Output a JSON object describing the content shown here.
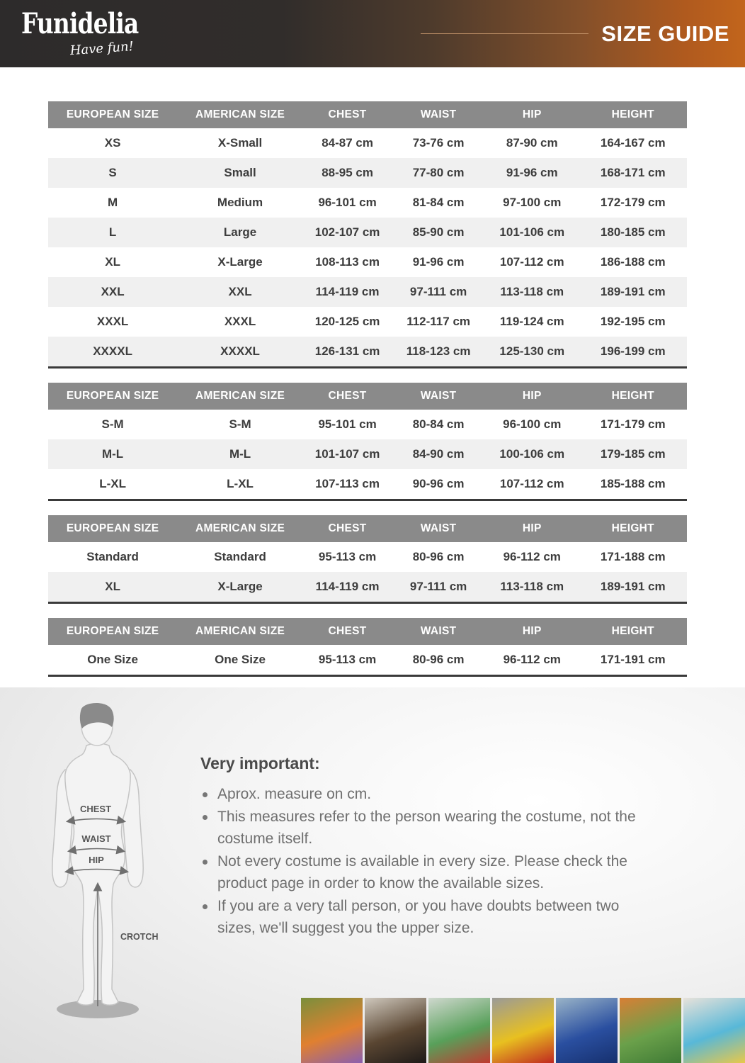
{
  "header": {
    "logo_text": "Funidelia",
    "logo_tagline": "Have fun!",
    "title": "SIZE GUIDE"
  },
  "colors": {
    "banner_dark": "#2d2b2b",
    "banner_orange": "#c2651c",
    "banner_rule": "#c9996e",
    "table_header_bg": "#8a8a8a",
    "row_alt_bg": "#f0f0f0",
    "table_border": "#3a3a3a"
  },
  "tables": [
    {
      "columns": [
        "EUROPEAN SIZE",
        "AMERICAN SIZE",
        "CHEST",
        "WAIST",
        "HIP",
        "HEIGHT"
      ],
      "rows": [
        [
          "XS",
          "X-Small",
          "84-87 cm",
          "73-76 cm",
          "87-90 cm",
          "164-167 cm"
        ],
        [
          "S",
          "Small",
          "88-95 cm",
          "77-80 cm",
          "91-96 cm",
          "168-171 cm"
        ],
        [
          "M",
          "Medium",
          "96-101 cm",
          "81-84 cm",
          "97-100 cm",
          "172-179 cm"
        ],
        [
          "L",
          "Large",
          "102-107 cm",
          "85-90 cm",
          "101-106 cm",
          "180-185 cm"
        ],
        [
          "XL",
          "X-Large",
          "108-113 cm",
          "91-96 cm",
          "107-112 cm",
          "186-188 cm"
        ],
        [
          "XXL",
          "XXL",
          "114-119 cm",
          "97-111 cm",
          "113-118 cm",
          "189-191 cm"
        ],
        [
          "XXXL",
          "XXXL",
          "120-125 cm",
          "112-117 cm",
          "119-124 cm",
          "192-195 cm"
        ],
        [
          "XXXXL",
          "XXXXL",
          "126-131 cm",
          "118-123 cm",
          "125-130 cm",
          "196-199 cm"
        ]
      ]
    },
    {
      "columns": [
        "EUROPEAN SIZE",
        "AMERICAN SIZE",
        "CHEST",
        "WAIST",
        "HIP",
        "HEIGHT"
      ],
      "rows": [
        [
          "S-M",
          "S-M",
          "95-101 cm",
          "80-84 cm",
          "96-100 cm",
          "171-179 cm"
        ],
        [
          "M-L",
          "M-L",
          "101-107 cm",
          "84-90 cm",
          "100-106 cm",
          "179-185 cm"
        ],
        [
          "L-XL",
          "L-XL",
          "107-113 cm",
          "90-96 cm",
          "107-112 cm",
          "185-188 cm"
        ]
      ]
    },
    {
      "columns": [
        "EUROPEAN SIZE",
        "AMERICAN SIZE",
        "CHEST",
        "WAIST",
        "HIP",
        "HEIGHT"
      ],
      "rows": [
        [
          "Standard",
          "Standard",
          "95-113 cm",
          "80-96 cm",
          "96-112 cm",
          "171-188 cm"
        ],
        [
          "XL",
          "X-Large",
          "114-119 cm",
          "97-111 cm",
          "113-118 cm",
          "189-191 cm"
        ]
      ]
    },
    {
      "columns": [
        "EUROPEAN SIZE",
        "AMERICAN SIZE",
        "CHEST",
        "WAIST",
        "HIP",
        "HEIGHT"
      ],
      "rows": [
        [
          "One Size",
          "One Size",
          "95-113 cm",
          "80-96 cm",
          "96-112 cm",
          "171-191 cm"
        ]
      ]
    }
  ],
  "diagram": {
    "chest_label": "CHEST",
    "waist_label": "WAIST",
    "hip_label": "HIP",
    "crotch_label": "CROTCH"
  },
  "notes": {
    "title": "Very important:",
    "bullets": [
      "Aprox. measure on cm.",
      "This measures refer to the person wearing the costume, not the costume itself.",
      "Not every costume is available in every size. Please check the product page in order to know the available sizes.",
      "If you are a very tall person, or you have doubts between two sizes, we'll suggest you the upper size."
    ]
  },
  "footer_photos": [
    {
      "name": "orange-costume-outdoors",
      "colors": [
        "#7a8f3c",
        "#e08030",
        "#8a5fb0"
      ]
    },
    {
      "name": "furry-dark-costumes",
      "colors": [
        "#cfc8bd",
        "#5a4632",
        "#1e1a18"
      ]
    },
    {
      "name": "green-red-hero-costumes",
      "colors": [
        "#cfd8ce",
        "#58a05a",
        "#c03a30"
      ]
    },
    {
      "name": "yellow-red-arcade-costumes",
      "colors": [
        "#9a9a98",
        "#e8c020",
        "#c02820"
      ]
    },
    {
      "name": "blue-hero-kid-costume",
      "colors": [
        "#9ab4c8",
        "#2a4fa0",
        "#16306e"
      ]
    },
    {
      "name": "green-orange-fighter-costume",
      "colors": [
        "#d87f35",
        "#6aa04a",
        "#3f7a35"
      ]
    },
    {
      "name": "blue-family-costumes",
      "colors": [
        "#e8e2da",
        "#58b8d8",
        "#e8c84a"
      ]
    }
  ]
}
